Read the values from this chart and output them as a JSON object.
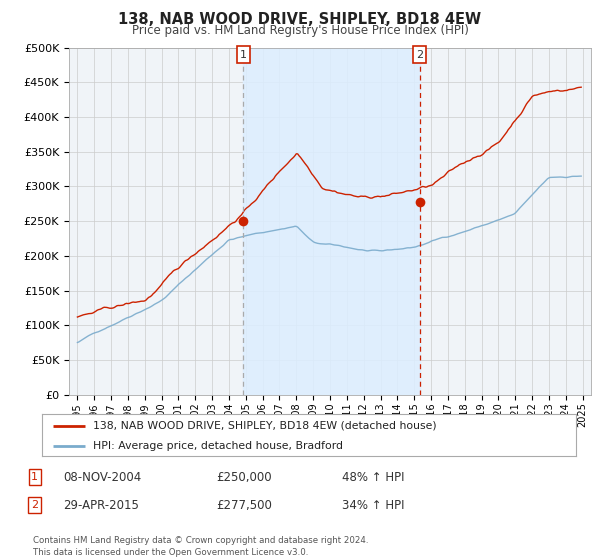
{
  "title": "138, NAB WOOD DRIVE, SHIPLEY, BD18 4EW",
  "subtitle": "Price paid vs. HM Land Registry's House Price Index (HPI)",
  "legend_line1": "138, NAB WOOD DRIVE, SHIPLEY, BD18 4EW (detached house)",
  "legend_line2": "HPI: Average price, detached house, Bradford",
  "annotation1_date": "08-NOV-2004",
  "annotation1_price": "£250,000",
  "annotation1_hpi": "48% ↑ HPI",
  "annotation2_date": "29-APR-2015",
  "annotation2_price": "£277,500",
  "annotation2_hpi": "34% ↑ HPI",
  "footer": "Contains HM Land Registry data © Crown copyright and database right 2024.\nThis data is licensed under the Open Government Licence v3.0.",
  "red_color": "#cc2200",
  "blue_color": "#7aabcc",
  "dashed1_color": "#aaaaaa",
  "dashed2_color": "#cc2200",
  "background_color": "#ffffff",
  "plot_bg_color": "#f0f4f8",
  "shade_color": "#ddeeff",
  "grid_color": "#cccccc",
  "ylim": [
    0,
    500000
  ],
  "yticks": [
    0,
    50000,
    100000,
    150000,
    200000,
    250000,
    300000,
    350000,
    400000,
    450000,
    500000
  ],
  "xlim_start": 1994.5,
  "xlim_end": 2025.5,
  "sale1_x": 2004.86,
  "sale1_y": 250000,
  "sale2_x": 2015.33,
  "sale2_y": 277500,
  "dashed1_x": 2004.86,
  "dashed2_x": 2015.33
}
